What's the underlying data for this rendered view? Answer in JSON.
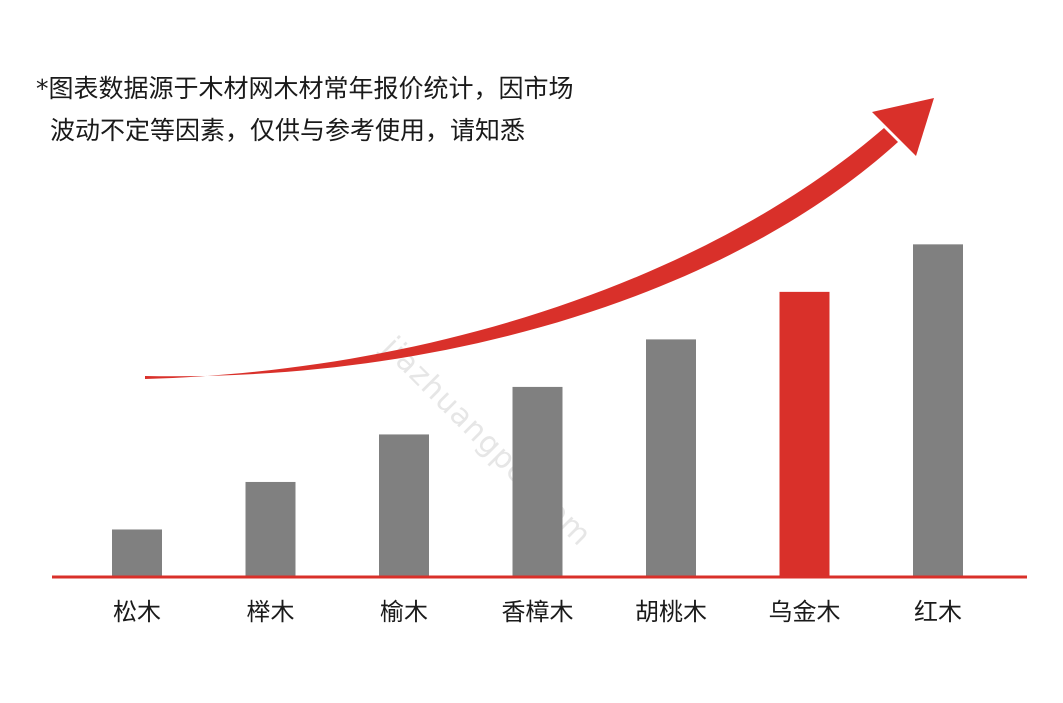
{
  "note": {
    "line1": "*图表数据源于木材网木材常年报价统计，因市场",
    "line2": "波动不定等因素，仅供与参考使用，请知悉"
  },
  "watermark": "jiazhuangpei.com",
  "chart_data": {
    "type": "bar",
    "categories": [
      "松木",
      "榉木",
      "榆木",
      "香樟木",
      "胡桃木",
      "乌金木",
      "红木"
    ],
    "values": [
      1,
      2,
      3,
      4,
      5,
      6,
      7
    ],
    "ylim": [
      0,
      11.3
    ],
    "highlight_index": 5,
    "title": "",
    "xlabel": "",
    "ylabel": "",
    "grid": false,
    "colors": {
      "bar": "#808080",
      "highlight": "#d9302a",
      "axis": "#d9302a",
      "arrow": "#d9302a"
    }
  }
}
